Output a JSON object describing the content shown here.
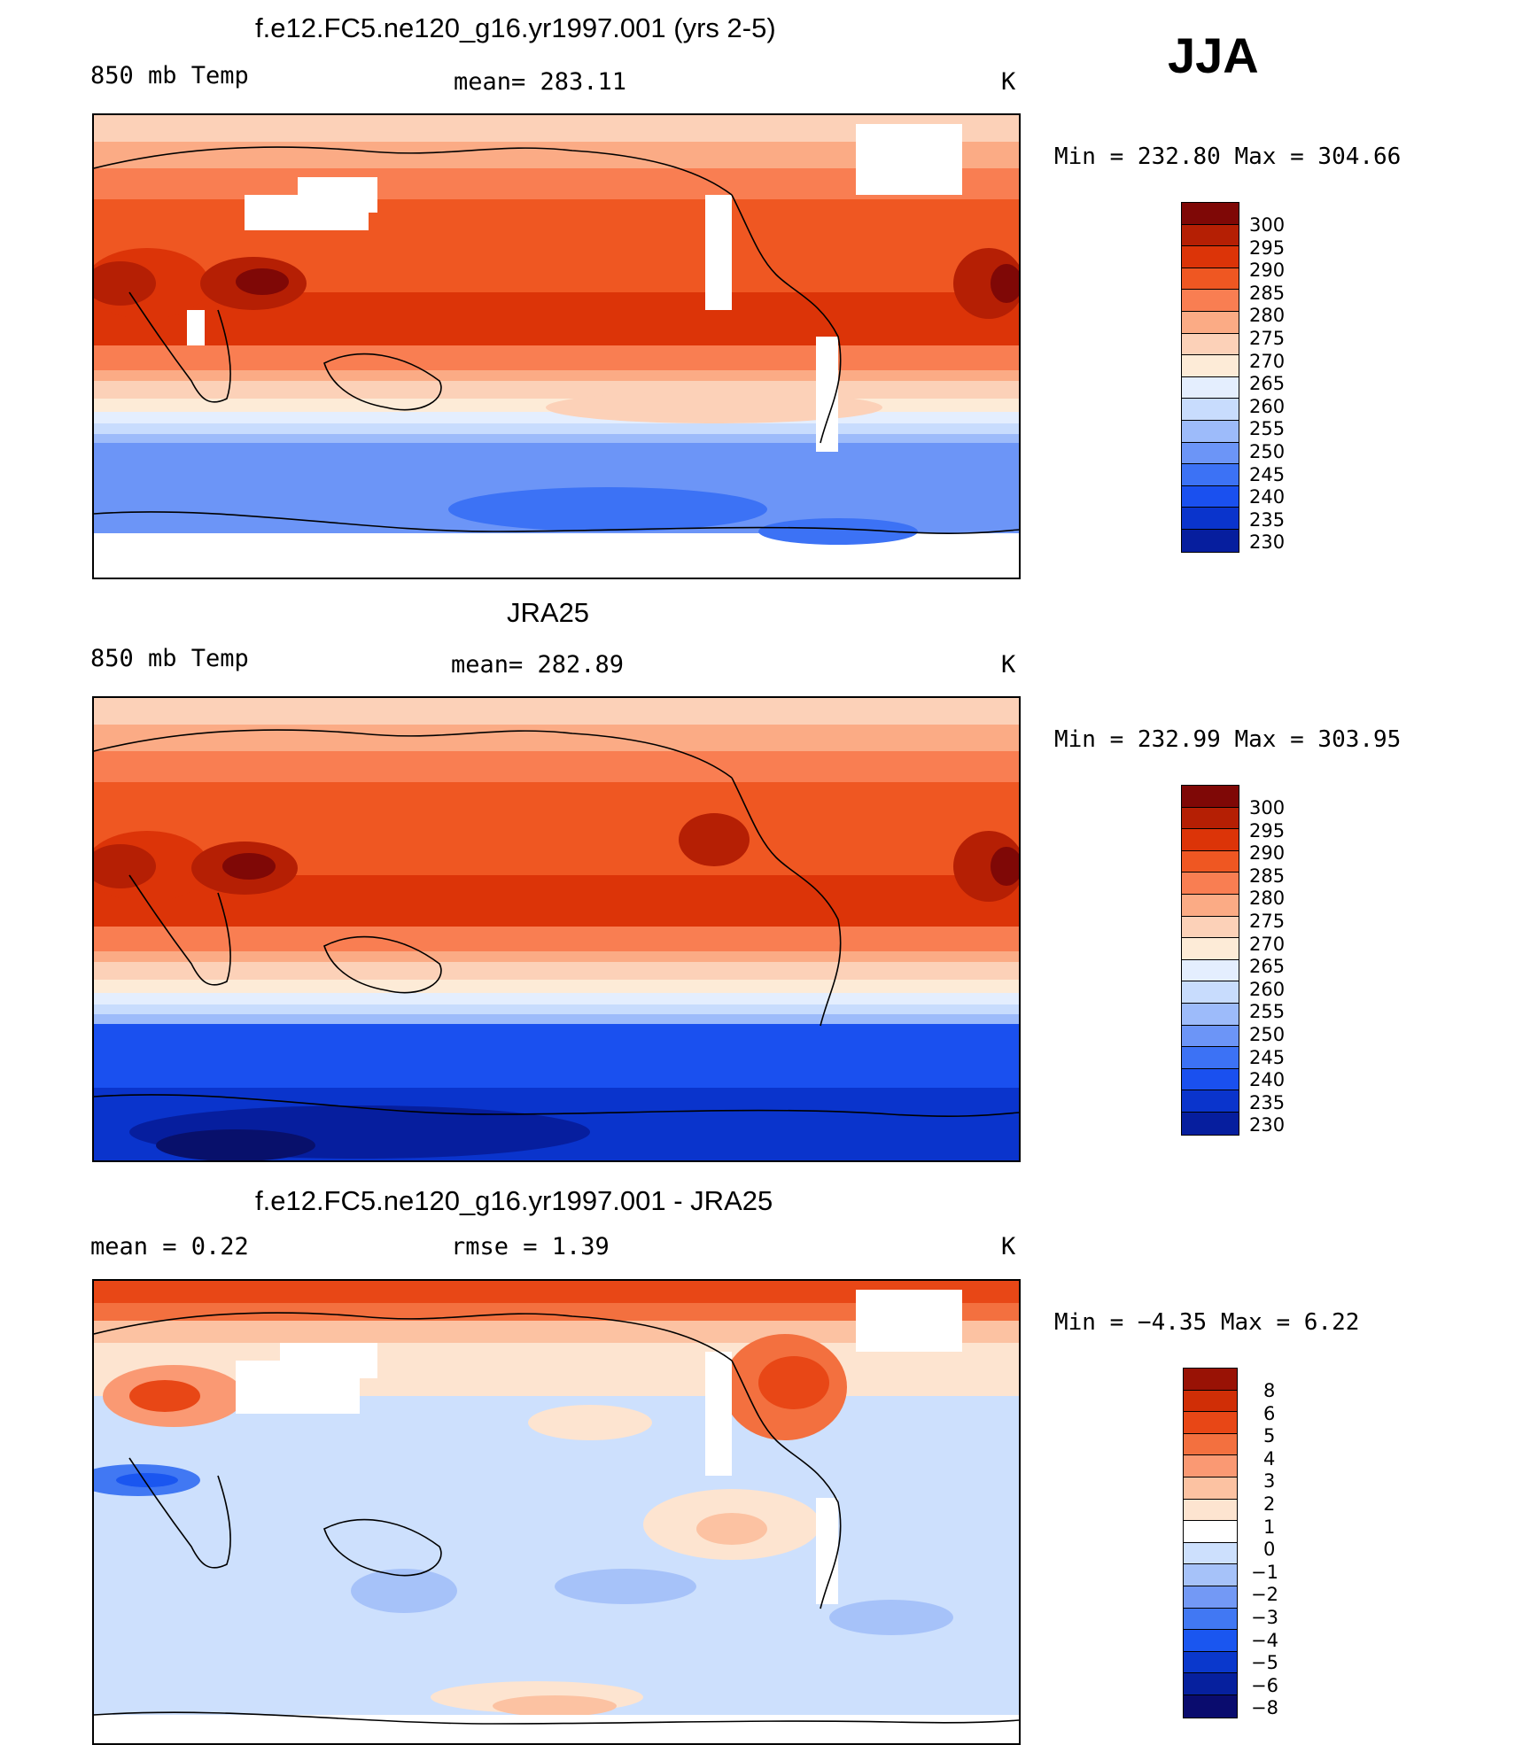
{
  "season": "JJA",
  "colors": {
    "temp_scale": [
      "#08106b",
      "#061e9e",
      "#0a34cc",
      "#1a50ef",
      "#3c72f5",
      "#6c95f7",
      "#9dbbfa",
      "#c8dcfd",
      "#e4eefe",
      "#fdebd7",
      "#fcd1b8",
      "#fbab85",
      "#f97e52",
      "#ef5722",
      "#dc3408",
      "#b51f04",
      "#7f0806"
    ],
    "diff_scale": [
      "#0a0c6e",
      "#06209e",
      "#0a38cc",
      "#1a56f0",
      "#4178f3",
      "#7399f5",
      "#a6c2f9",
      "#cde0fd",
      "#fde4d0",
      "#fcc2a2",
      "#fa9973",
      "#f3703f",
      "#e84716",
      "#d02e06",
      "#991205"
    ]
  },
  "panels": [
    {
      "title": "f.e12.FC5.ne120_g16.yr1997.001 (yrs 2-5)",
      "left_label": "850 mb Temp",
      "center_label": "mean= 283.11",
      "right_label": "K",
      "min_max": "Min  =  232.80  Max  =  304.66",
      "colorbar_labels": [
        "300",
        "295",
        "290",
        "285",
        "280",
        "275",
        "270",
        "265",
        "260",
        "255",
        "250",
        "245",
        "240",
        "235",
        "230"
      ]
    },
    {
      "title": "JRA25",
      "left_label": "850 mb Temp",
      "center_label": "mean= 282.89",
      "right_label": "K",
      "min_max": "Min  =  232.99  Max  =  303.95",
      "colorbar_labels": [
        "300",
        "295",
        "290",
        "285",
        "280",
        "275",
        "270",
        "265",
        "260",
        "255",
        "250",
        "245",
        "240",
        "235",
        "230"
      ]
    },
    {
      "title": "f.e12.FC5.ne120_g16.yr1997.001 - JRA25",
      "left_label": "mean =     0.22",
      "center_label": "rmse =     1.39",
      "right_label": "K",
      "min_max": "Min  =   −4.35  Max  =      6.22",
      "colorbar_labels": [
        "8",
        "6",
        "5",
        "4",
        "3",
        "2",
        "1",
        "0",
        "−1",
        "−2",
        "−3",
        "−4",
        "−5",
        "−6",
        "−8"
      ]
    }
  ],
  "chart_data": [
    {
      "type": "heatmap",
      "title": "f.e12.FC5.ne120_g16.yr1997.001 (yrs 2-5)",
      "variable": "850 mb Temp",
      "units": "K",
      "mean": 283.11,
      "min": 232.8,
      "max": 304.66,
      "contour_levels": [
        230,
        235,
        240,
        245,
        250,
        255,
        260,
        265,
        270,
        275,
        280,
        285,
        290,
        295,
        300
      ]
    },
    {
      "type": "heatmap",
      "title": "JRA25",
      "variable": "850 mb Temp",
      "units": "K",
      "mean": 282.89,
      "min": 232.99,
      "max": 303.95,
      "contour_levels": [
        230,
        235,
        240,
        245,
        250,
        255,
        260,
        265,
        270,
        275,
        280,
        285,
        290,
        295,
        300
      ]
    },
    {
      "type": "heatmap",
      "title": "f.e12.FC5.ne120_g16.yr1997.001 - JRA25",
      "units": "K",
      "mean": 0.22,
      "rmse": 1.39,
      "min": -4.35,
      "max": 6.22,
      "contour_levels": [
        -8,
        -6,
        -5,
        -4,
        -3,
        -2,
        -1,
        0,
        1,
        2,
        3,
        4,
        5,
        6,
        8
      ]
    }
  ]
}
